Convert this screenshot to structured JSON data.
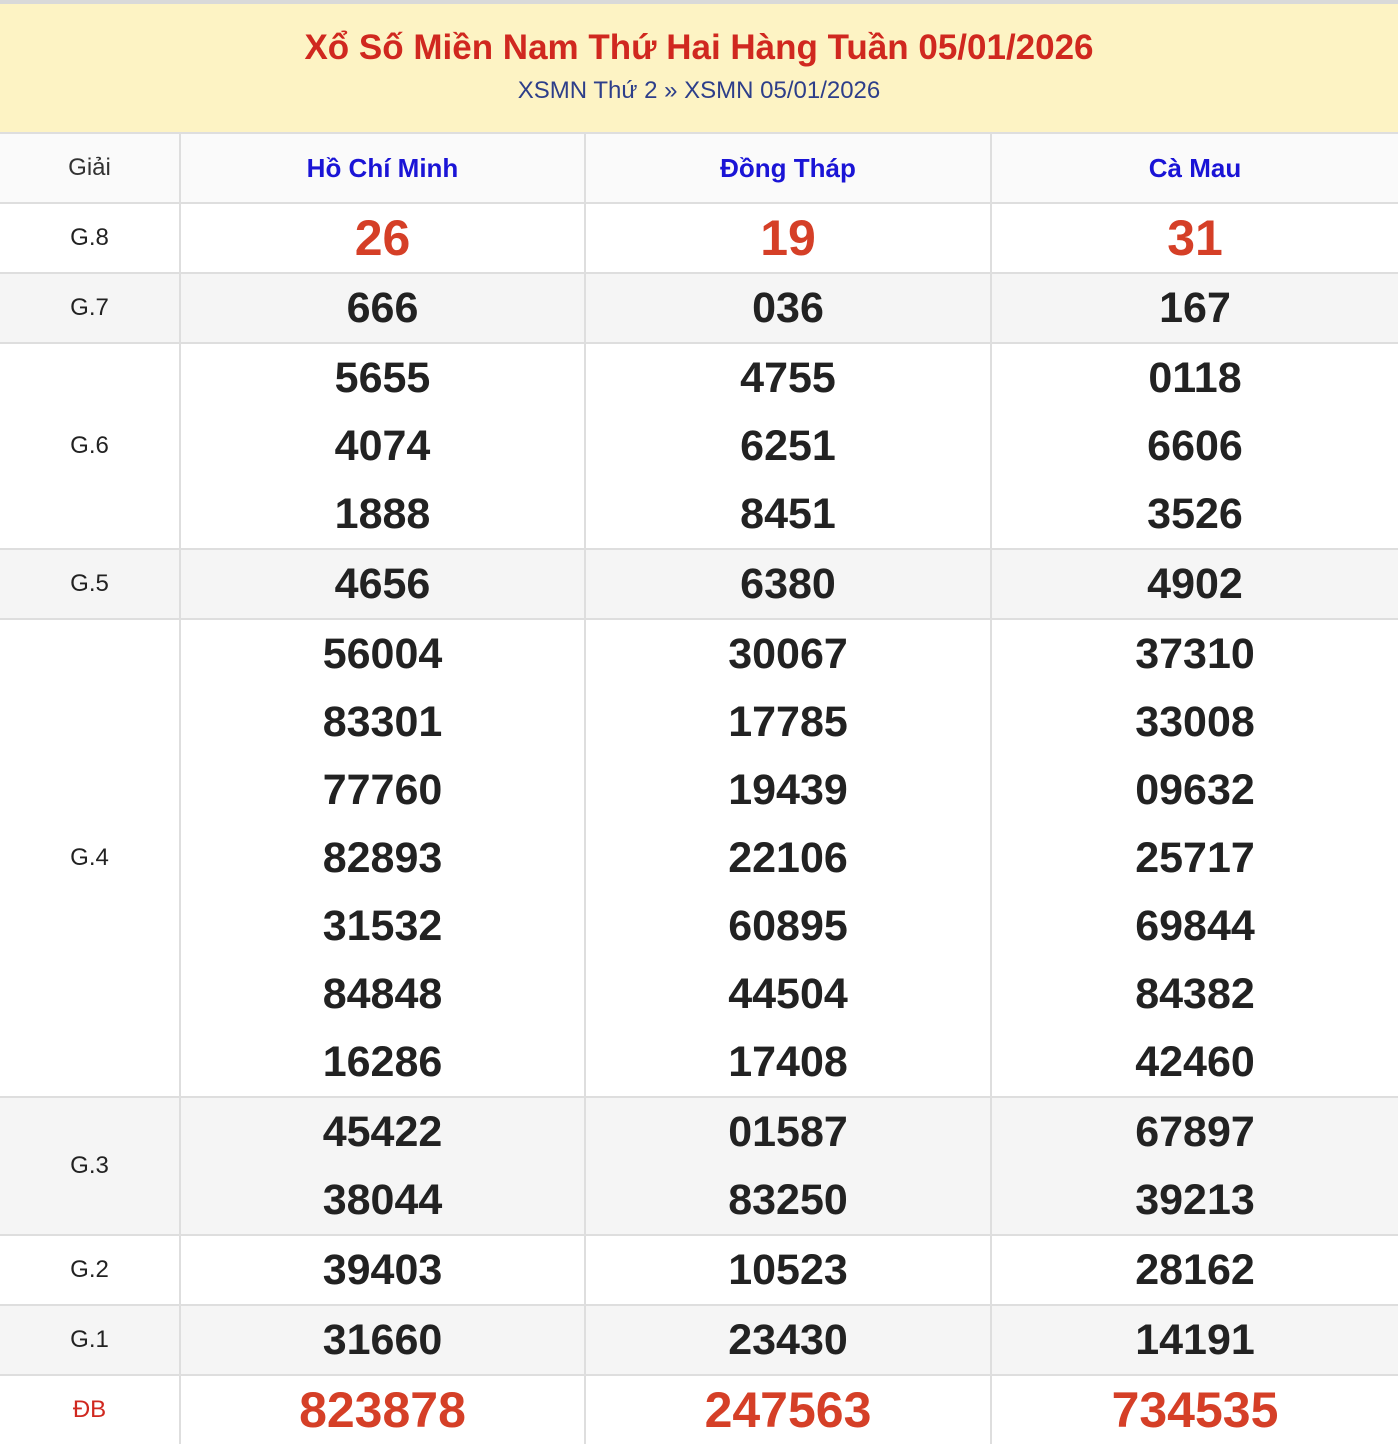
{
  "header": {
    "title": "Xổ Số Miền Nam Thứ Hai Hàng Tuần 05/01/2026",
    "breadcrumb": [
      "XSMN Thứ 2",
      "»",
      "XSMN 05/01/2026"
    ]
  },
  "table": {
    "label_header": "Giải",
    "provinces": [
      "Hồ Chí Minh",
      "Đồng Tháp",
      "Cà Mau"
    ],
    "rows": [
      {
        "label": "G.8",
        "highlight": true,
        "values": [
          [
            "26"
          ],
          [
            "19"
          ],
          [
            "31"
          ]
        ]
      },
      {
        "label": "G.7",
        "values": [
          [
            "666"
          ],
          [
            "036"
          ],
          [
            "167"
          ]
        ]
      },
      {
        "label": "G.6",
        "values": [
          [
            "5655",
            "4074",
            "1888"
          ],
          [
            "4755",
            "6251",
            "8451"
          ],
          [
            "0118",
            "6606",
            "3526"
          ]
        ]
      },
      {
        "label": "G.5",
        "values": [
          [
            "4656"
          ],
          [
            "6380"
          ],
          [
            "4902"
          ]
        ]
      },
      {
        "label": "G.4",
        "values": [
          [
            "56004",
            "83301",
            "77760",
            "82893",
            "31532",
            "84848",
            "16286"
          ],
          [
            "30067",
            "17785",
            "19439",
            "22106",
            "60895",
            "44504",
            "17408"
          ],
          [
            "37310",
            "33008",
            "09632",
            "25717",
            "69844",
            "84382",
            "42460"
          ]
        ]
      },
      {
        "label": "G.3",
        "values": [
          [
            "45422",
            "38044"
          ],
          [
            "01587",
            "83250"
          ],
          [
            "67897",
            "39213"
          ]
        ]
      },
      {
        "label": "G.2",
        "values": [
          [
            "39403"
          ],
          [
            "10523"
          ],
          [
            "28162"
          ]
        ]
      },
      {
        "label": "G.1",
        "values": [
          [
            "31660"
          ],
          [
            "23430"
          ],
          [
            "14191"
          ]
        ]
      },
      {
        "label": "ĐB",
        "highlight": true,
        "special": true,
        "values": [
          [
            "823878"
          ],
          [
            "247563"
          ],
          [
            "734535"
          ]
        ]
      }
    ]
  },
  "colors": {
    "title": "#d0281f",
    "highlight_number": "#d53f27",
    "province": "#1a14d6",
    "banner_bg": "#fdf3c4",
    "breadcrumb": "#2d3e8a"
  }
}
